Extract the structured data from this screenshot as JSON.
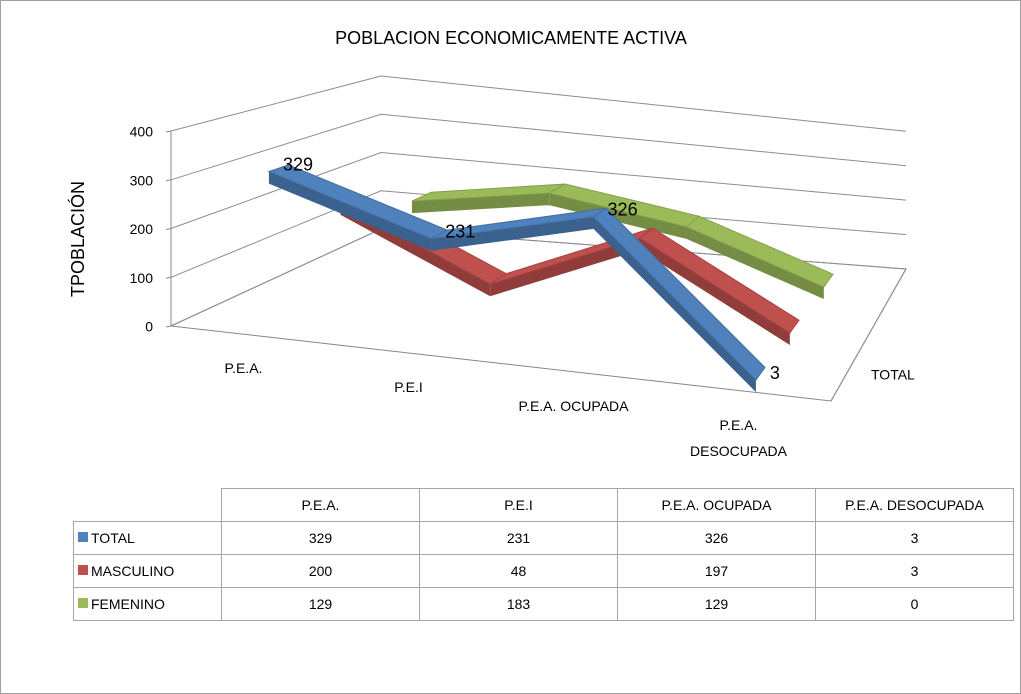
{
  "chart_data": {
    "type": "line3d",
    "title": "POBLACION ECONOMICAMENTE ACTIVA",
    "y_axis_label": "TPOBLACIÓN",
    "categories": [
      "P.E.A.",
      "P.E.I",
      "P.E.A. OCUPADA",
      "P.E.A. DESOCUPADA"
    ],
    "series": [
      {
        "name": "TOTAL",
        "color": "#4f81bd",
        "values": [
          329,
          231,
          326,
          3
        ],
        "data_labels": true
      },
      {
        "name": "MASCULINO",
        "color": "#c0504d",
        "values": [
          200,
          48,
          197,
          3
        ],
        "data_labels": false
      },
      {
        "name": "FEMENINO",
        "color": "#9bbb59",
        "values": [
          129,
          183,
          129,
          0
        ],
        "data_labels": false
      }
    ],
    "ylim": [
      0,
      400
    ],
    "yticks": [
      0,
      100,
      200,
      300,
      400
    ],
    "grid": true,
    "data_table": true
  }
}
